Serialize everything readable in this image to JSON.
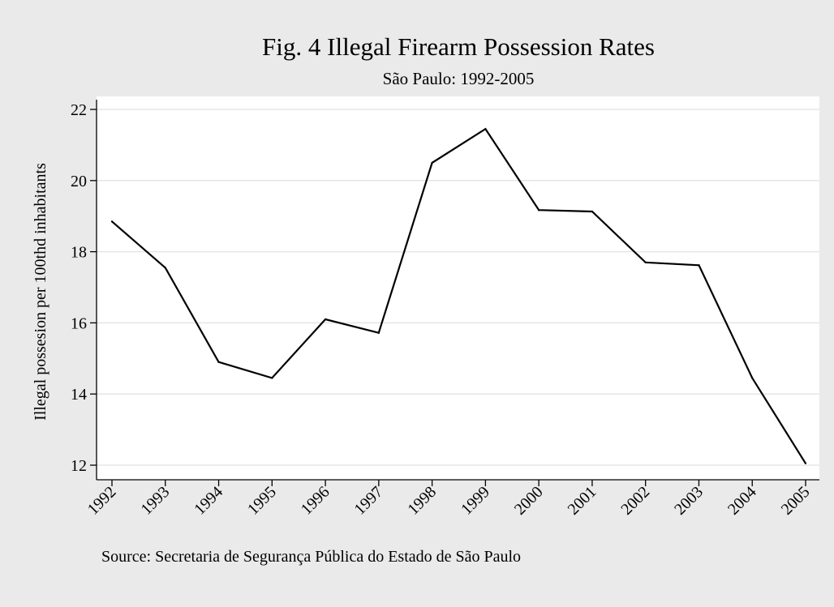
{
  "chart_data": {
    "type": "line",
    "title": "Fig. 4 Illegal Firearm Possession Rates",
    "subtitle": "São Paulo: 1992-2005",
    "xlabel": "",
    "ylabel": "Illegal possesion per 100thd inhabitants",
    "note": "Source: Secretaria de Segurança Pública do Estado de São Paulo",
    "x": [
      "1992",
      "1993",
      "1994",
      "1995",
      "1996",
      "1997",
      "1998",
      "1999",
      "2000",
      "2001",
      "2002",
      "2003",
      "2004",
      "2005"
    ],
    "series": [
      {
        "values": [
          18.85,
          17.55,
          14.9,
          14.45,
          16.1,
          15.72,
          20.5,
          21.45,
          19.17,
          19.13,
          17.7,
          17.62,
          14.45,
          12.05
        ]
      }
    ],
    "ylim": [
      12,
      22
    ],
    "yticks": [
      12,
      14,
      16,
      18,
      20,
      22
    ],
    "grid": true,
    "legend": "none",
    "colors": {
      "outer_background": "#eaeaea",
      "plot_background": "#ffffff",
      "gridline": "#e5e5e5",
      "line": "#000000"
    }
  }
}
